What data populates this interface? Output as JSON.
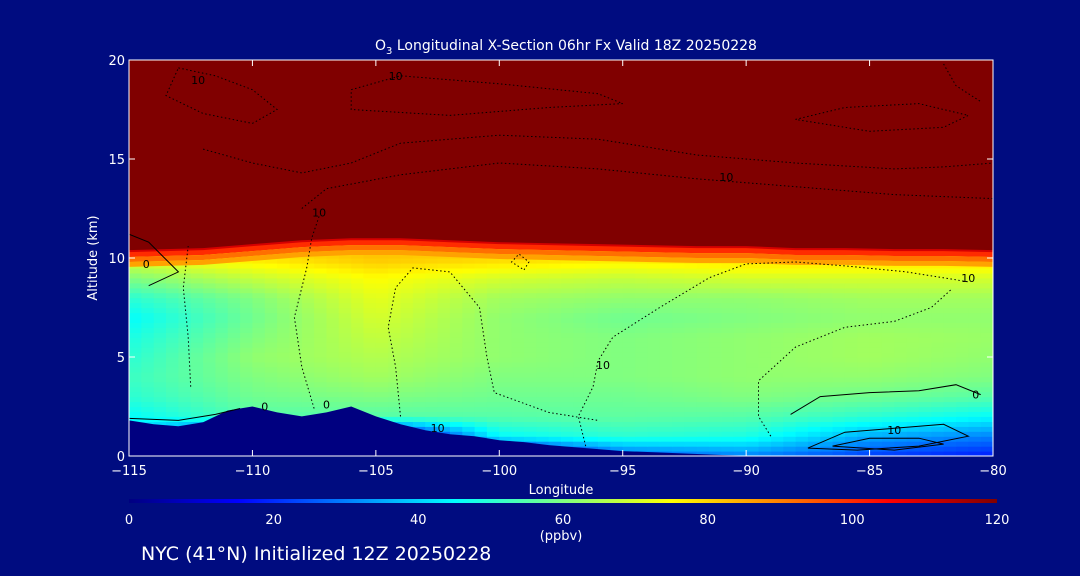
{
  "chart_data": {
    "type": "heatmap",
    "title_prefix": "O",
    "title_sub": "3",
    "title_rest": " Longitudinal X-Section 06hr  Fx Valid 18Z 20250228",
    "xlabel": "Longitude",
    "ylabel": "Altitude (km)",
    "xlim": [
      -115,
      -80
    ],
    "ylim": [
      0,
      20
    ],
    "x_ticks": [
      -115,
      -110,
      -105,
      -100,
      -95,
      -90,
      -85,
      -80
    ],
    "x_tick_labels": [
      "−115",
      "−110",
      "−105",
      "−100",
      "−95",
      "−90",
      "−85",
      "−80"
    ],
    "y_ticks": [
      0,
      5,
      10,
      15,
      20
    ],
    "y_tick_labels": [
      "0",
      "5",
      "10",
      "15",
      "20"
    ],
    "colorbar": {
      "label": "(ppbv)",
      "range": [
        0,
        120
      ],
      "ticks": [
        0,
        20,
        40,
        60,
        80,
        100,
        120
      ],
      "tick_labels": [
        "0",
        "20",
        "40",
        "60",
        "80",
        "100",
        "120"
      ],
      "stops": [
        "#000080",
        "#0000ff",
        "#0080ff",
        "#00ffff",
        "#80ff80",
        "#ffff00",
        "#ff8000",
        "#ff0000",
        "#800000"
      ]
    },
    "terrain_top_km": [
      [
        -115,
        1.8
      ],
      [
        -114,
        1.6
      ],
      [
        -113,
        1.5
      ],
      [
        -112,
        1.7
      ],
      [
        -111,
        2.3
      ],
      [
        -110,
        2.5
      ],
      [
        -109,
        2.2
      ],
      [
        -108,
        2.0
      ],
      [
        -107,
        2.2
      ],
      [
        -106,
        2.5
      ],
      [
        -105,
        2.0
      ],
      [
        -104,
        1.6
      ],
      [
        -103,
        1.3
      ],
      [
        -102,
        1.1
      ],
      [
        -101,
        1.0
      ],
      [
        -100,
        0.8
      ],
      [
        -99,
        0.7
      ],
      [
        -98,
        0.55
      ],
      [
        -97,
        0.45
      ],
      [
        -96,
        0.35
      ],
      [
        -95,
        0.25
      ],
      [
        -94,
        0.2
      ],
      [
        -93,
        0.15
      ],
      [
        -92,
        0.1
      ],
      [
        -91,
        0.05
      ],
      [
        -90,
        0.02
      ],
      [
        -80,
        0.0
      ]
    ],
    "tropopause_km": [
      [
        -115,
        10.4
      ],
      [
        -112,
        10.5
      ],
      [
        -110,
        10.7
      ],
      [
        -108,
        10.9
      ],
      [
        -106,
        11.0
      ],
      [
        -104,
        11.0
      ],
      [
        -102,
        10.9
      ],
      [
        -100,
        10.8
      ],
      [
        -98,
        10.75
      ],
      [
        -96,
        10.7
      ],
      [
        -94,
        10.65
      ],
      [
        -92,
        10.6
      ],
      [
        -90,
        10.6
      ],
      [
        -88,
        10.5
      ],
      [
        -86,
        10.5
      ],
      [
        -84,
        10.45
      ],
      [
        -82,
        10.45
      ],
      [
        -80,
        10.4
      ]
    ],
    "ozone_ppbv": {
      "x": [
        -115,
        -110,
        -105,
        -100,
        -95,
        -90,
        -85,
        -80
      ],
      "y": [
        0,
        1,
        2,
        3,
        4,
        5,
        6,
        7,
        8,
        9,
        10
      ],
      "z": [
        [
          0,
          0,
          0,
          0,
          25,
          30,
          22,
          18
        ],
        [
          40,
          0,
          0,
          45,
          50,
          48,
          35,
          30
        ],
        [
          45,
          55,
          55,
          55,
          56,
          55,
          50,
          45
        ],
        [
          50,
          58,
          60,
          58,
          58,
          60,
          58,
          55
        ],
        [
          52,
          60,
          64,
          60,
          60,
          62,
          62,
          60
        ],
        [
          50,
          62,
          66,
          62,
          60,
          62,
          64,
          62
        ],
        [
          48,
          60,
          68,
          62,
          60,
          62,
          64,
          63
        ],
        [
          45,
          58,
          70,
          62,
          58,
          60,
          62,
          62
        ],
        [
          50,
          60,
          72,
          64,
          62,
          62,
          64,
          64
        ],
        [
          60,
          68,
          75,
          70,
          68,
          70,
          70,
          70
        ],
        [
          72,
          78,
          82,
          80,
          78,
          80,
          80,
          80
        ]
      ]
    },
    "contour_labels": [
      {
        "text": "10",
        "lon": -112.2,
        "alt": 18.8
      },
      {
        "text": "10",
        "lon": -104.2,
        "alt": 19.0
      },
      {
        "text": "10",
        "lon": -107.3,
        "alt": 12.1
      },
      {
        "text": "10",
        "lon": -90.8,
        "alt": 13.9
      },
      {
        "text": "10",
        "lon": -81.0,
        "alt": 8.8
      },
      {
        "text": "10",
        "lon": -95.8,
        "alt": 4.4
      },
      {
        "text": "10",
        "lon": -102.5,
        "alt": 1.2
      },
      {
        "text": "10",
        "lon": -84.0,
        "alt": 1.1
      },
      {
        "text": "0",
        "lon": -114.3,
        "alt": 9.5
      },
      {
        "text": "0",
        "lon": -109.5,
        "alt": 2.3
      },
      {
        "text": "0",
        "lon": -107.0,
        "alt": 2.4
      },
      {
        "text": "0",
        "lon": -80.7,
        "alt": 2.9
      }
    ]
  },
  "footer": {
    "text": "NYC (41°N) Initialized 12Z 20250228"
  }
}
